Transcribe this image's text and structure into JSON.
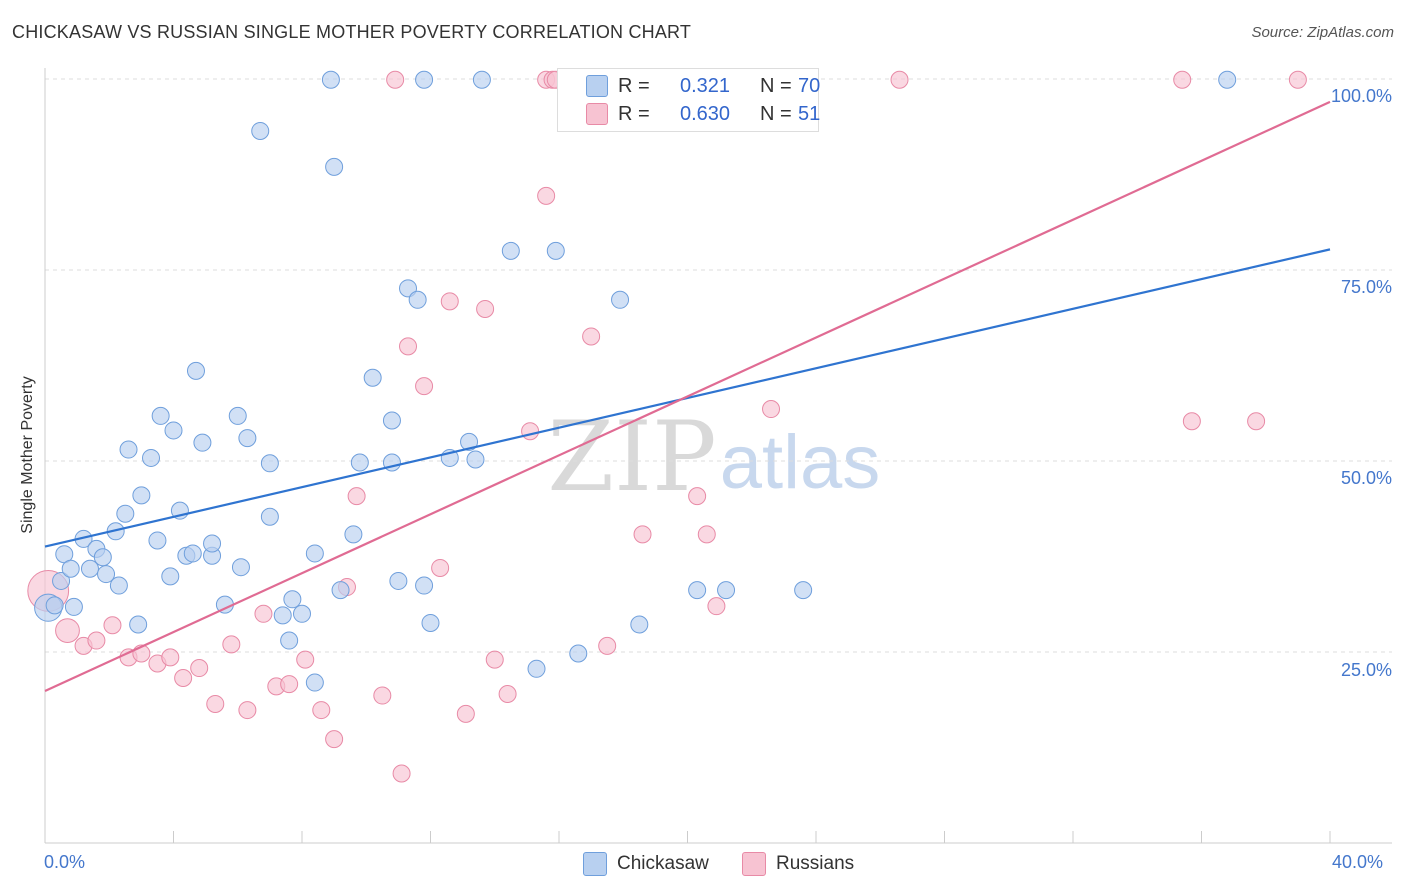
{
  "title": "CHICKASAW VS RUSSIAN SINGLE MOTHER POVERTY CORRELATION CHART",
  "source": "Source: ZipAtlas.com",
  "watermark": {
    "zip": "ZIP",
    "atlas": "atlas"
  },
  "colors": {
    "chickasaw_fill": "#b8d0f0",
    "chickasaw_stroke": "#6f9fdc",
    "chickasaw_line": "#2f74d0",
    "russians_fill": "#f7c3d2",
    "russians_stroke": "#e88aa6",
    "russians_line": "#e06b93",
    "tick_label": "#4477cc"
  },
  "legend": {
    "rows": [
      {
        "r_label": "R =",
        "r_value": "0.321",
        "n_label": "N =",
        "n_value": "70"
      },
      {
        "r_label": "R =",
        "r_value": "0.630",
        "n_label": "N =",
        "n_value": "51"
      }
    ]
  },
  "bottom_legend": [
    "Chickasaw",
    "Russians"
  ],
  "chart_data": {
    "type": "scatter",
    "xlabel": "",
    "ylabel": "Single Mother Poverty",
    "xlim": [
      0,
      40
    ],
    "ylim": [
      0,
      100
    ],
    "x_tick_labels": [
      "0.0%",
      "40.0%"
    ],
    "y_tick_labels": [
      "25.0%",
      "50.0%",
      "75.0%",
      "100.0%"
    ],
    "y_ticks": [
      25,
      50,
      75,
      100
    ],
    "grid": true,
    "legend_placement": "top-center",
    "series": [
      {
        "name": "Chickasaw",
        "trend": {
          "x": [
            0,
            40
          ],
          "y": [
            38.8,
            77.7
          ]
        },
        "points": [
          [
            0.1,
            30.8,
            1.6
          ],
          [
            0.3,
            31.1,
            1
          ],
          [
            0.5,
            34.3,
            1
          ],
          [
            0.6,
            37.8,
            1
          ],
          [
            0.8,
            35.9,
            1
          ],
          [
            0.9,
            30.9,
            1
          ],
          [
            1.2,
            39.8,
            1
          ],
          [
            1.4,
            35.9,
            1
          ],
          [
            1.6,
            38.5,
            1
          ],
          [
            1.8,
            37.4,
            1
          ],
          [
            1.9,
            35.2,
            1
          ],
          [
            2.2,
            40.8,
            1
          ],
          [
            2.3,
            33.7,
            1
          ],
          [
            2.5,
            43.1,
            1
          ],
          [
            2.6,
            51.5,
            1
          ],
          [
            2.9,
            28.6,
            1
          ],
          [
            3.0,
            45.5,
            1
          ],
          [
            3.3,
            50.4,
            1
          ],
          [
            3.5,
            39.6,
            1
          ],
          [
            3.6,
            55.9,
            1
          ],
          [
            3.9,
            34.9,
            1
          ],
          [
            4.0,
            54.0,
            1
          ],
          [
            4.2,
            43.5,
            1
          ],
          [
            4.4,
            37.6,
            1
          ],
          [
            4.6,
            37.9,
            1
          ],
          [
            4.7,
            61.8,
            1
          ],
          [
            4.9,
            52.4,
            1
          ],
          [
            5.2,
            37.6,
            1
          ],
          [
            5.2,
            39.2,
            1
          ],
          [
            5.6,
            31.2,
            1
          ],
          [
            6.0,
            55.9,
            1
          ],
          [
            6.1,
            36.1,
            1
          ],
          [
            6.3,
            53.0,
            1
          ],
          [
            6.7,
            93.2,
            1
          ],
          [
            7.0,
            42.7,
            1
          ],
          [
            7.0,
            49.7,
            1
          ],
          [
            7.4,
            29.8,
            1
          ],
          [
            7.6,
            26.5,
            1
          ],
          [
            7.7,
            31.9,
            1
          ],
          [
            8.0,
            30.0,
            1
          ],
          [
            8.4,
            37.9,
            1
          ],
          [
            8.4,
            21.0,
            1
          ],
          [
            8.9,
            99.9,
            1
          ],
          [
            9.0,
            88.5,
            1
          ],
          [
            9.2,
            33.1,
            1
          ],
          [
            9.6,
            40.4,
            1
          ],
          [
            9.8,
            49.8,
            1
          ],
          [
            10.2,
            60.9,
            1
          ],
          [
            10.8,
            55.3,
            1
          ],
          [
            10.8,
            49.8,
            1
          ],
          [
            11.0,
            34.3,
            1
          ],
          [
            11.3,
            72.6,
            1
          ],
          [
            11.6,
            71.1,
            1
          ],
          [
            11.8,
            99.9,
            1
          ],
          [
            11.8,
            33.7,
            1
          ],
          [
            12.0,
            28.8,
            1
          ],
          [
            12.6,
            50.4,
            1
          ],
          [
            13.2,
            52.5,
            1
          ],
          [
            13.4,
            50.2,
            1
          ],
          [
            13.6,
            99.9,
            1
          ],
          [
            14.5,
            77.5,
            1
          ],
          [
            15.3,
            22.8,
            1
          ],
          [
            15.9,
            77.5,
            1
          ],
          [
            16.6,
            24.8,
            1
          ],
          [
            17.9,
            71.1,
            1
          ],
          [
            18.5,
            28.6,
            1
          ],
          [
            20.3,
            33.1,
            1
          ],
          [
            21.2,
            33.1,
            1
          ],
          [
            23.6,
            33.1,
            1
          ],
          [
            36.8,
            99.9,
            1
          ]
        ]
      },
      {
        "name": "Russians",
        "trend": {
          "x": [
            0,
            40
          ],
          "y": [
            19.9,
            97.0
          ]
        },
        "points": [
          [
            0.1,
            33.0,
            2.4
          ],
          [
            0.7,
            27.8,
            1.4
          ],
          [
            1.2,
            25.8,
            1
          ],
          [
            1.6,
            26.5,
            1
          ],
          [
            2.1,
            28.5,
            1
          ],
          [
            2.6,
            24.3,
            1
          ],
          [
            3.0,
            24.8,
            1
          ],
          [
            3.5,
            23.5,
            1
          ],
          [
            3.9,
            24.3,
            1
          ],
          [
            4.3,
            21.6,
            1
          ],
          [
            4.8,
            22.9,
            1
          ],
          [
            5.3,
            18.2,
            1
          ],
          [
            5.8,
            26.0,
            1
          ],
          [
            6.3,
            17.4,
            1
          ],
          [
            6.8,
            30.0,
            1
          ],
          [
            7.2,
            20.5,
            1
          ],
          [
            7.6,
            20.8,
            1
          ],
          [
            8.1,
            24.0,
            1
          ],
          [
            8.6,
            17.4,
            1
          ],
          [
            9.0,
            13.6,
            1
          ],
          [
            9.4,
            33.5,
            1
          ],
          [
            9.7,
            45.4,
            1
          ],
          [
            10.5,
            19.3,
            1
          ],
          [
            10.9,
            99.9,
            1
          ],
          [
            11.1,
            9.1,
            1
          ],
          [
            11.3,
            65.0,
            1
          ],
          [
            11.8,
            59.8,
            1
          ],
          [
            12.3,
            36.0,
            1
          ],
          [
            12.6,
            70.9,
            1
          ],
          [
            13.1,
            16.9,
            1
          ],
          [
            13.7,
            69.9,
            1
          ],
          [
            14.0,
            24.0,
            1
          ],
          [
            14.4,
            19.5,
            1
          ],
          [
            15.1,
            53.9,
            1
          ],
          [
            15.6,
            99.9,
            1
          ],
          [
            15.6,
            84.7,
            1
          ],
          [
            15.8,
            99.9,
            1
          ],
          [
            17.0,
            66.3,
            1
          ],
          [
            17.5,
            25.8,
            1
          ],
          [
            18.6,
            40.4,
            1
          ],
          [
            20.3,
            45.4,
            1
          ],
          [
            20.6,
            40.4,
            1
          ],
          [
            20.9,
            31.0,
            1
          ],
          [
            21.8,
            99.9,
            1
          ],
          [
            22.6,
            56.8,
            1
          ],
          [
            26.6,
            99.9,
            1
          ],
          [
            35.4,
            99.9,
            1
          ],
          [
            35.7,
            55.2,
            1
          ],
          [
            37.7,
            55.2,
            1
          ],
          [
            39.0,
            99.9,
            1
          ],
          [
            15.9,
            99.9,
            1
          ]
        ]
      }
    ]
  }
}
